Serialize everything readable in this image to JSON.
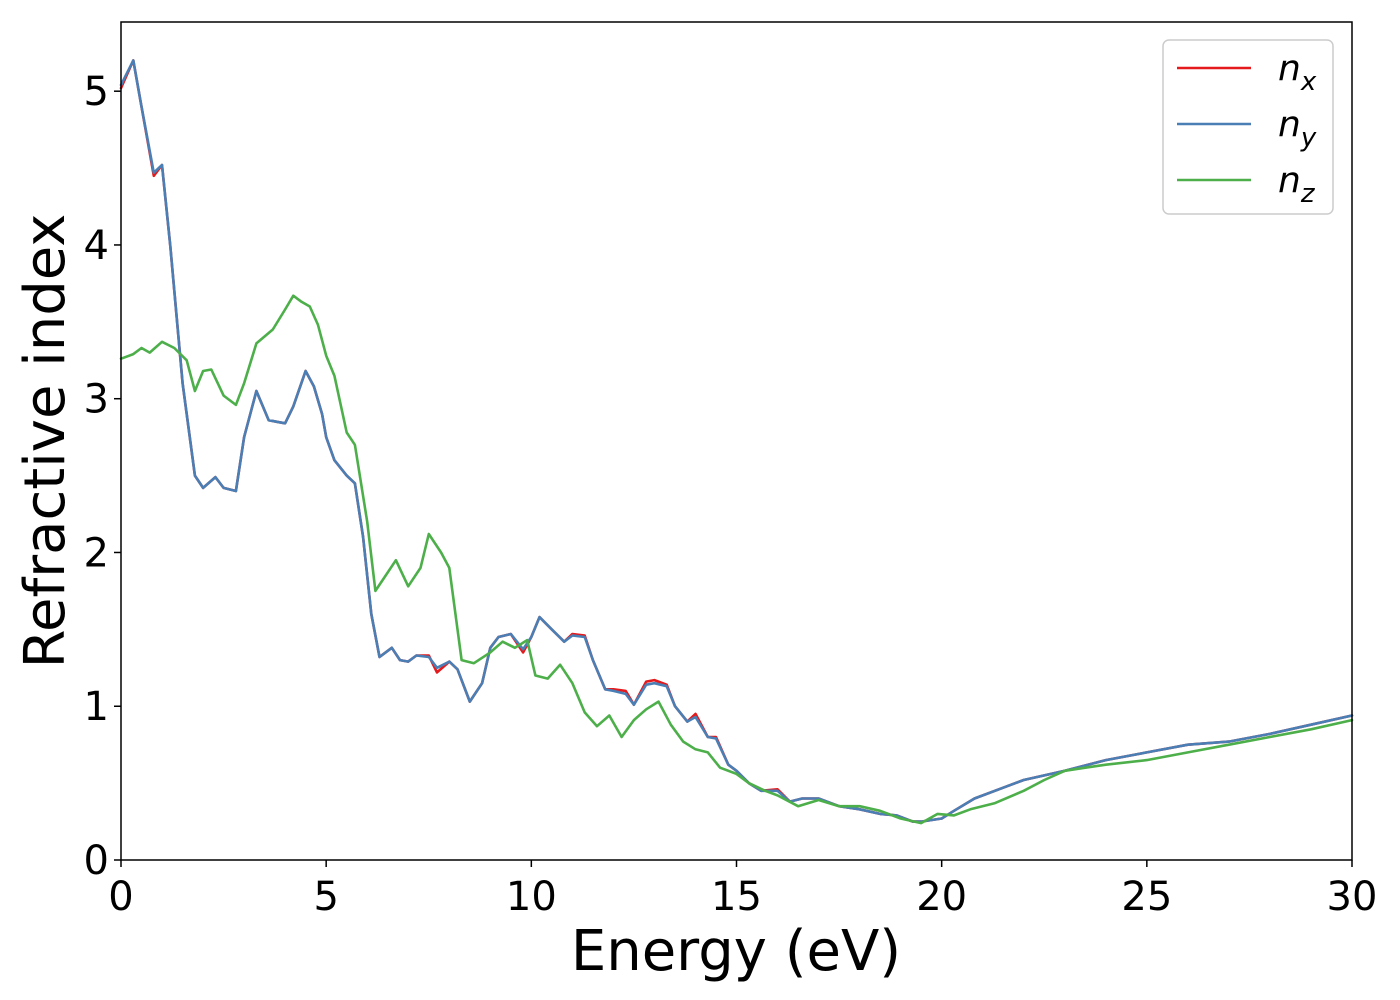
{
  "chart_data": {
    "type": "line",
    "xlabel": "Energy (eV)",
    "ylabel": "Refractive index",
    "xlim": [
      0,
      30
    ],
    "ylim": [
      0,
      5.45
    ],
    "xticks": [
      "0",
      "5",
      "10",
      "15",
      "20",
      "25",
      "30"
    ],
    "yticks": [
      "0",
      "1",
      "2",
      "3",
      "4",
      "5"
    ],
    "grid": false,
    "legend_position": "top-right",
    "series": [
      {
        "name": "n",
        "subscript": "x",
        "color": "#e41a1c",
        "x": [
          0,
          0.3,
          0.5,
          0.8,
          1.0,
          1.2,
          1.5,
          1.8,
          2.0,
          2.3,
          2.5,
          2.8,
          3.0,
          3.3,
          3.6,
          3.8,
          4.0,
          4.2,
          4.5,
          4.7,
          4.9,
          5.0,
          5.2,
          5.5,
          5.7,
          5.9,
          6.1,
          6.3,
          6.6,
          6.8,
          7.0,
          7.2,
          7.5,
          7.7,
          8.0,
          8.2,
          8.5,
          8.8,
          9.0,
          9.2,
          9.5,
          9.8,
          10.0,
          10.2,
          10.5,
          10.8,
          11.0,
          11.3,
          11.5,
          11.8,
          12.0,
          12.3,
          12.5,
          12.8,
          13.0,
          13.3,
          13.5,
          13.8,
          14.0,
          14.3,
          14.5,
          14.8,
          15.0,
          15.3,
          15.6,
          16.0,
          16.3,
          16.6,
          17.0,
          17.5,
          18.0,
          18.5,
          18.9,
          19.3,
          19.5,
          20.0,
          20.3,
          20.8,
          21.5,
          22.0,
          22.5,
          23.0,
          24.0,
          25.0,
          26.0,
          27.0,
          28.0,
          29.0,
          30.0
        ],
        "y": [
          5.02,
          5.2,
          4.9,
          4.45,
          4.52,
          4.0,
          3.1,
          2.5,
          2.42,
          2.49,
          2.42,
          2.4,
          2.75,
          3.05,
          2.86,
          2.85,
          2.84,
          2.95,
          3.18,
          3.08,
          2.9,
          2.75,
          2.6,
          2.5,
          2.45,
          2.1,
          1.6,
          1.32,
          1.38,
          1.3,
          1.29,
          1.33,
          1.33,
          1.22,
          1.29,
          1.24,
          1.03,
          1.15,
          1.38,
          1.45,
          1.47,
          1.35,
          1.45,
          1.58,
          1.5,
          1.42,
          1.47,
          1.46,
          1.3,
          1.11,
          1.11,
          1.1,
          1.01,
          1.16,
          1.17,
          1.14,
          1.0,
          0.9,
          0.95,
          0.8,
          0.8,
          0.62,
          0.58,
          0.5,
          0.45,
          0.46,
          0.38,
          0.4,
          0.4,
          0.35,
          0.33,
          0.3,
          0.29,
          0.25,
          0.25,
          0.27,
          0.32,
          0.4,
          0.47,
          0.52,
          0.55,
          0.58,
          0.65,
          0.7,
          0.75,
          0.77,
          0.82,
          0.88,
          0.94
        ]
      },
      {
        "name": "n",
        "subscript": "y",
        "color": "#4a7fb5",
        "x": [
          0,
          0.3,
          0.5,
          0.8,
          1.0,
          1.2,
          1.5,
          1.8,
          2.0,
          2.3,
          2.5,
          2.8,
          3.0,
          3.3,
          3.6,
          3.8,
          4.0,
          4.2,
          4.5,
          4.7,
          4.9,
          5.0,
          5.2,
          5.5,
          5.7,
          5.9,
          6.1,
          6.3,
          6.6,
          6.8,
          7.0,
          7.2,
          7.5,
          7.7,
          8.0,
          8.2,
          8.5,
          8.8,
          9.0,
          9.2,
          9.5,
          9.8,
          10.0,
          10.2,
          10.5,
          10.8,
          11.0,
          11.3,
          11.5,
          11.8,
          12.0,
          12.3,
          12.5,
          12.8,
          13.0,
          13.3,
          13.5,
          13.8,
          14.0,
          14.3,
          14.5,
          14.8,
          15.0,
          15.3,
          15.6,
          16.0,
          16.3,
          16.6,
          17.0,
          17.5,
          18.0,
          18.5,
          18.9,
          19.3,
          19.5,
          20.0,
          20.3,
          20.8,
          21.5,
          22.0,
          22.5,
          23.0,
          24.0,
          25.0,
          26.0,
          27.0,
          28.0,
          29.0,
          30.0
        ],
        "y": [
          5.04,
          5.2,
          4.9,
          4.47,
          4.52,
          4.0,
          3.1,
          2.5,
          2.42,
          2.49,
          2.42,
          2.4,
          2.75,
          3.05,
          2.86,
          2.85,
          2.84,
          2.95,
          3.18,
          3.08,
          2.9,
          2.75,
          2.6,
          2.5,
          2.45,
          2.1,
          1.6,
          1.32,
          1.38,
          1.3,
          1.29,
          1.33,
          1.32,
          1.25,
          1.29,
          1.24,
          1.03,
          1.15,
          1.38,
          1.45,
          1.47,
          1.37,
          1.45,
          1.58,
          1.5,
          1.42,
          1.46,
          1.45,
          1.3,
          1.11,
          1.1,
          1.08,
          1.01,
          1.14,
          1.15,
          1.13,
          1.0,
          0.9,
          0.93,
          0.8,
          0.79,
          0.62,
          0.58,
          0.5,
          0.45,
          0.45,
          0.38,
          0.4,
          0.4,
          0.35,
          0.33,
          0.3,
          0.29,
          0.25,
          0.25,
          0.27,
          0.32,
          0.4,
          0.47,
          0.52,
          0.55,
          0.58,
          0.65,
          0.7,
          0.75,
          0.77,
          0.82,
          0.88,
          0.94
        ]
      },
      {
        "name": "n",
        "subscript": "z",
        "color": "#4daf4a",
        "x": [
          0,
          0.3,
          0.5,
          0.7,
          1.0,
          1.3,
          1.6,
          1.8,
          2.0,
          2.2,
          2.5,
          2.8,
          3.0,
          3.3,
          3.7,
          4.0,
          4.2,
          4.4,
          4.6,
          4.8,
          5.0,
          5.2,
          5.5,
          5.7,
          6.0,
          6.2,
          6.4,
          6.7,
          7.0,
          7.3,
          7.5,
          7.8,
          8.0,
          8.3,
          8.6,
          9.0,
          9.3,
          9.6,
          9.9,
          10.1,
          10.4,
          10.7,
          11.0,
          11.3,
          11.6,
          11.9,
          12.2,
          12.5,
          12.8,
          13.1,
          13.4,
          13.7,
          14.0,
          14.3,
          14.6,
          15.0,
          15.3,
          15.7,
          16.0,
          16.5,
          17.0,
          17.5,
          18.0,
          18.5,
          19.0,
          19.5,
          19.9,
          20.3,
          20.7,
          21.3,
          22.0,
          22.5,
          23.0,
          23.5,
          24.0,
          25.0,
          26.0,
          27.0,
          28.0,
          29.0,
          30.0
        ],
        "y": [
          3.26,
          3.29,
          3.33,
          3.3,
          3.37,
          3.33,
          3.25,
          3.05,
          3.18,
          3.19,
          3.02,
          2.96,
          3.1,
          3.36,
          3.45,
          3.58,
          3.67,
          3.63,
          3.6,
          3.48,
          3.28,
          3.15,
          2.78,
          2.7,
          2.2,
          1.75,
          1.83,
          1.95,
          1.78,
          1.9,
          2.12,
          2.0,
          1.9,
          1.3,
          1.28,
          1.35,
          1.42,
          1.38,
          1.43,
          1.2,
          1.18,
          1.27,
          1.15,
          0.96,
          0.87,
          0.94,
          0.8,
          0.91,
          0.98,
          1.03,
          0.88,
          0.77,
          0.72,
          0.7,
          0.6,
          0.56,
          0.5,
          0.45,
          0.42,
          0.35,
          0.39,
          0.35,
          0.35,
          0.32,
          0.27,
          0.24,
          0.3,
          0.29,
          0.33,
          0.37,
          0.45,
          0.52,
          0.58,
          0.6,
          0.62,
          0.65,
          0.7,
          0.75,
          0.8,
          0.85,
          0.91
        ]
      }
    ]
  }
}
